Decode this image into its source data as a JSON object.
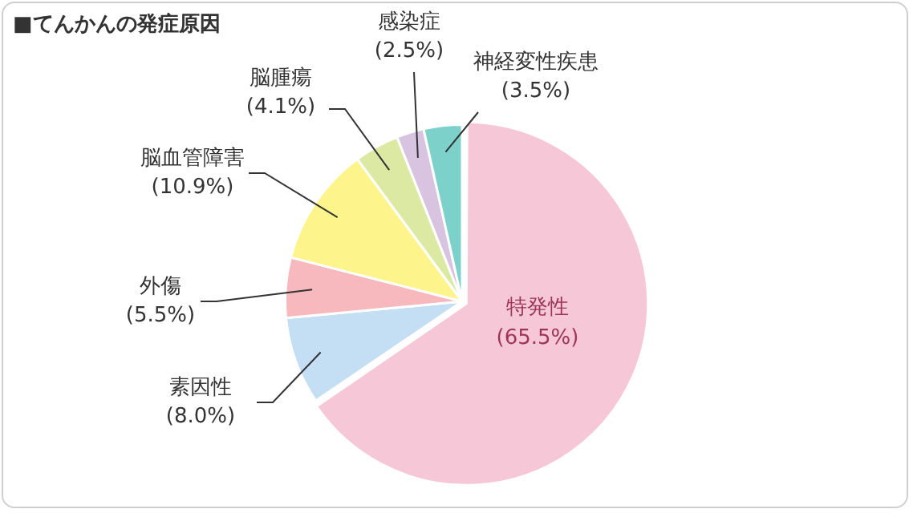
{
  "chart_data": {
    "type": "pie",
    "title": "■てんかんの発症原因",
    "categories": [
      "特発性",
      "素因性",
      "外傷",
      "脳血管障害",
      "脳腫瘍",
      "感染症",
      "神経変性疾患"
    ],
    "values": [
      65.5,
      8.0,
      5.5,
      10.9,
      4.1,
      2.5,
      3.5
    ],
    "colors": [
      "#f6c7d7",
      "#c4def4",
      "#f7b9bd",
      "#fdf58c",
      "#dbe9a3",
      "#d8c3e1",
      "#7dd1cb"
    ],
    "value_labels": [
      "(65.5%)",
      "(8.0%)",
      "(5.5%)",
      "(10.9%)",
      "(4.1%)",
      "(2.5%)",
      "(3.5%)"
    ],
    "legend": false
  }
}
